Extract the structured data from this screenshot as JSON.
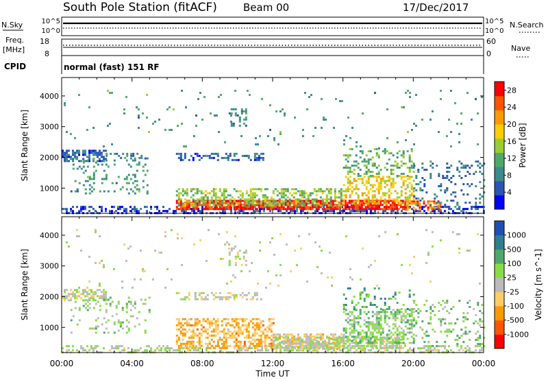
{
  "header": {
    "station": "South Pole Station (fitACF)",
    "beam": "Beam 00",
    "date": "17/Dec/2017"
  },
  "noise_panel": {
    "left_label": "N.Sky",
    "right_label": "N.Search",
    "left_ticks": [
      "10^5",
      "10^0"
    ],
    "right_ticks": [
      "10^5",
      "10^0"
    ]
  },
  "freq_panel": {
    "left_label_1": "Freq.",
    "left_label_2": "[MHz]",
    "left_ticks": [
      "18",
      "8"
    ],
    "right_label": "Nave",
    "right_ticks": [
      "60",
      "0"
    ]
  },
  "cpid": {
    "label": "CPID",
    "text": "normal (fast) 151 RF"
  },
  "chart_data": [
    {
      "type": "heatmap",
      "name": "power",
      "ylabel": "Slant Range [km]",
      "yticks": [
        "1000",
        "2000",
        "3000",
        "4000"
      ],
      "ylim": [
        180,
        4600
      ],
      "xlim": [
        0,
        24
      ],
      "colorbar": {
        "label": "Power [dB]",
        "ticks": [
          "4",
          "8",
          "12",
          "16",
          "20",
          "24",
          "28"
        ],
        "range": [
          0,
          30
        ],
        "colors": [
          "#0000ff",
          "#2a55b5",
          "#3c8a8c",
          "#4fa86a",
          "#9acd32",
          "#ffcc00",
          "#ff9900",
          "#ff5500",
          "#ff0000"
        ]
      },
      "regions": [
        {
          "t": [
            0.0,
            24.0
          ],
          "r": [
            200,
            420
          ],
          "v": 4,
          "d": 0.45
        },
        {
          "t": [
            6.5,
            19.5
          ],
          "r": [
            300,
            620
          ],
          "v": 28,
          "d": 0.85
        },
        {
          "t": [
            19.5,
            21.5
          ],
          "r": [
            300,
            600
          ],
          "v": 24,
          "d": 0.6
        },
        {
          "t": [
            6.5,
            16.0
          ],
          "r": [
            450,
            1000
          ],
          "v": 14,
          "d": 0.5
        },
        {
          "t": [
            16.0,
            20.0
          ],
          "r": [
            500,
            1400
          ],
          "v": 18,
          "d": 0.4
        },
        {
          "t": [
            16.0,
            20.0
          ],
          "r": [
            1400,
            2300
          ],
          "v": 12,
          "d": 0.25
        },
        {
          "t": [
            0.0,
            2.5
          ],
          "r": [
            1900,
            2250
          ],
          "v": 6,
          "d": 0.6
        },
        {
          "t": [
            2.5,
            4.5
          ],
          "r": [
            1950,
            2150
          ],
          "v": 8,
          "d": 0.3
        },
        {
          "t": [
            6.5,
            11.5
          ],
          "r": [
            1900,
            2150
          ],
          "v": 6,
          "d": 0.45
        },
        {
          "t": [
            0.5,
            5.0
          ],
          "r": [
            800,
            2000
          ],
          "v": 10,
          "d": 0.15
        },
        {
          "t": [
            20.0,
            24.0
          ],
          "r": [
            400,
            1900
          ],
          "v": 7,
          "d": 0.15
        },
        {
          "t": [
            9.5,
            10.5
          ],
          "r": [
            3000,
            3600
          ],
          "v": 9,
          "d": 0.3
        },
        {
          "t": [
            0.0,
            24.0
          ],
          "r": [
            2300,
            4200
          ],
          "v": 10,
          "d": 0.02
        }
      ]
    },
    {
      "type": "heatmap",
      "name": "velocity",
      "xlabel": "Time UT",
      "ylabel": "Slant Range [km]",
      "yticks": [
        "1000",
        "2000",
        "3000",
        "4000"
      ],
      "xticks": [
        "00:00",
        "04:00",
        "08:00",
        "12:00",
        "16:00",
        "20:00",
        "00:00"
      ],
      "ylim": [
        180,
        4600
      ],
      "xlim": [
        0,
        24
      ],
      "colorbar": {
        "label": "Velocity [m s^-1]",
        "ticks": [
          "1000",
          "500",
          "100",
          "25",
          "-25",
          "-100",
          "-500",
          "-1000"
        ],
        "range": [
          -1200,
          1200
        ],
        "colors": [
          "#ff0000",
          "#ff5500",
          "#ff9900",
          "#ffcc66",
          "#bbbbbb",
          "#88dd44",
          "#4fa86a",
          "#2f7f8f",
          "#1f4fb5"
        ]
      },
      "regions": [
        {
          "t": [
            0.0,
            24.0
          ],
          "r": [
            200,
            420
          ],
          "v": 100,
          "d": 0.4
        },
        {
          "t": [
            6.5,
            12.0
          ],
          "r": [
            300,
            1300
          ],
          "v": -400,
          "d": 0.5
        },
        {
          "t": [
            12.0,
            16.0
          ],
          "r": [
            300,
            800
          ],
          "v": -200,
          "d": 0.55
        },
        {
          "t": [
            12.0,
            19.5
          ],
          "r": [
            300,
            700
          ],
          "v": 80,
          "d": 0.6
        },
        {
          "t": [
            16.0,
            20.0
          ],
          "r": [
            500,
            1600
          ],
          "v": 300,
          "d": 0.45
        },
        {
          "t": [
            16.0,
            20.0
          ],
          "r": [
            1600,
            2300
          ],
          "v": 500,
          "d": 0.2
        },
        {
          "t": [
            0.0,
            2.5
          ],
          "r": [
            1900,
            2250
          ],
          "v": 0,
          "d": 0.6
        },
        {
          "t": [
            6.5,
            11.5
          ],
          "r": [
            1900,
            2150
          ],
          "v": 10,
          "d": 0.45
        },
        {
          "t": [
            0.5,
            5.0
          ],
          "r": [
            800,
            2000
          ],
          "v": 200,
          "d": 0.15
        },
        {
          "t": [
            20.0,
            24.0
          ],
          "r": [
            400,
            1900
          ],
          "v": 300,
          "d": 0.15
        },
        {
          "t": [
            9.5,
            10.5
          ],
          "r": [
            3000,
            3600
          ],
          "v": -30,
          "d": 0.3
        },
        {
          "t": [
            0.0,
            24.0
          ],
          "r": [
            2300,
            4200
          ],
          "v": 0,
          "d": 0.02
        }
      ]
    }
  ]
}
